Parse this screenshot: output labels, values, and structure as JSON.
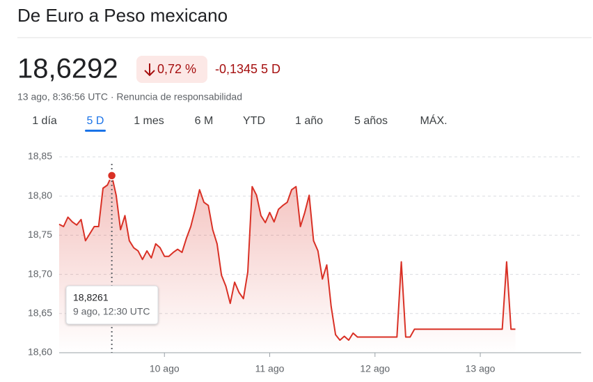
{
  "chart_data": {
    "type": "line",
    "title": "De Euro a Peso mexicano",
    "price": "18,6292",
    "change_percent": "0,72 %",
    "change": "-0,1345 5 D",
    "subtitle": "13 ago, 8:36:56 UTC · Renuncia de responsabilidad",
    "tabs": [
      "1 día",
      "5 D",
      "1 mes",
      "6 M",
      "YTD",
      "1 año",
      "5 años",
      "MÁX."
    ],
    "active_tab": "5 D",
    "color": "#d93025",
    "grid": true,
    "values": [
      18.764,
      18.761,
      18.773,
      18.767,
      18.763,
      18.77,
      18.743,
      18.752,
      18.761,
      18.761,
      18.81,
      18.814,
      18.8261,
      18.801,
      18.757,
      18.775,
      18.743,
      18.734,
      18.73,
      18.719,
      18.73,
      18.721,
      18.739,
      18.734,
      18.723,
      18.723,
      18.728,
      18.732,
      18.728,
      18.746,
      18.761,
      18.783,
      18.808,
      18.792,
      18.788,
      18.757,
      18.739,
      18.699,
      18.685,
      18.663,
      18.69,
      18.677,
      18.669,
      18.703,
      18.812,
      18.801,
      18.775,
      18.766,
      18.779,
      18.767,
      18.783,
      18.788,
      18.792,
      18.808,
      18.812,
      18.761,
      18.779,
      18.801,
      18.743,
      18.73,
      18.694,
      18.712,
      18.659,
      18.623,
      18.616,
      18.621,
      18.616,
      18.625,
      18.62,
      18.62,
      18.62,
      18.62,
      18.62,
      18.62,
      18.62,
      18.62,
      18.62,
      18.62,
      18.716,
      18.62,
      18.62,
      18.63,
      18.63,
      18.63,
      18.63,
      18.63,
      18.63,
      18.63,
      18.63,
      18.63,
      18.63,
      18.63,
      18.63,
      18.63,
      18.63,
      18.63,
      18.63,
      18.63,
      18.63,
      18.63,
      18.63,
      18.63,
      18.716,
      18.63,
      18.63
    ],
    "xlim": [
      0,
      119
    ],
    "xticks": [
      {
        "value": 24,
        "label": "10 ago"
      },
      {
        "value": 48,
        "label": "11 ago"
      },
      {
        "value": 72,
        "label": "12 ago"
      },
      {
        "value": 96,
        "label": "13 ago"
      }
    ],
    "ylim": [
      18.6,
      18.85
    ],
    "yticks": [
      {
        "value": 18.6,
        "label": "18,60"
      },
      {
        "value": 18.65,
        "label": "18,65"
      },
      {
        "value": 18.7,
        "label": "18,70"
      },
      {
        "value": 18.75,
        "label": "18,75"
      },
      {
        "value": 18.8,
        "label": "18,80"
      },
      {
        "value": 18.85,
        "label": "18,85"
      }
    ],
    "tooltip": {
      "value": "18,8261",
      "time": "9 ago, 12:30 UTC"
    }
  }
}
